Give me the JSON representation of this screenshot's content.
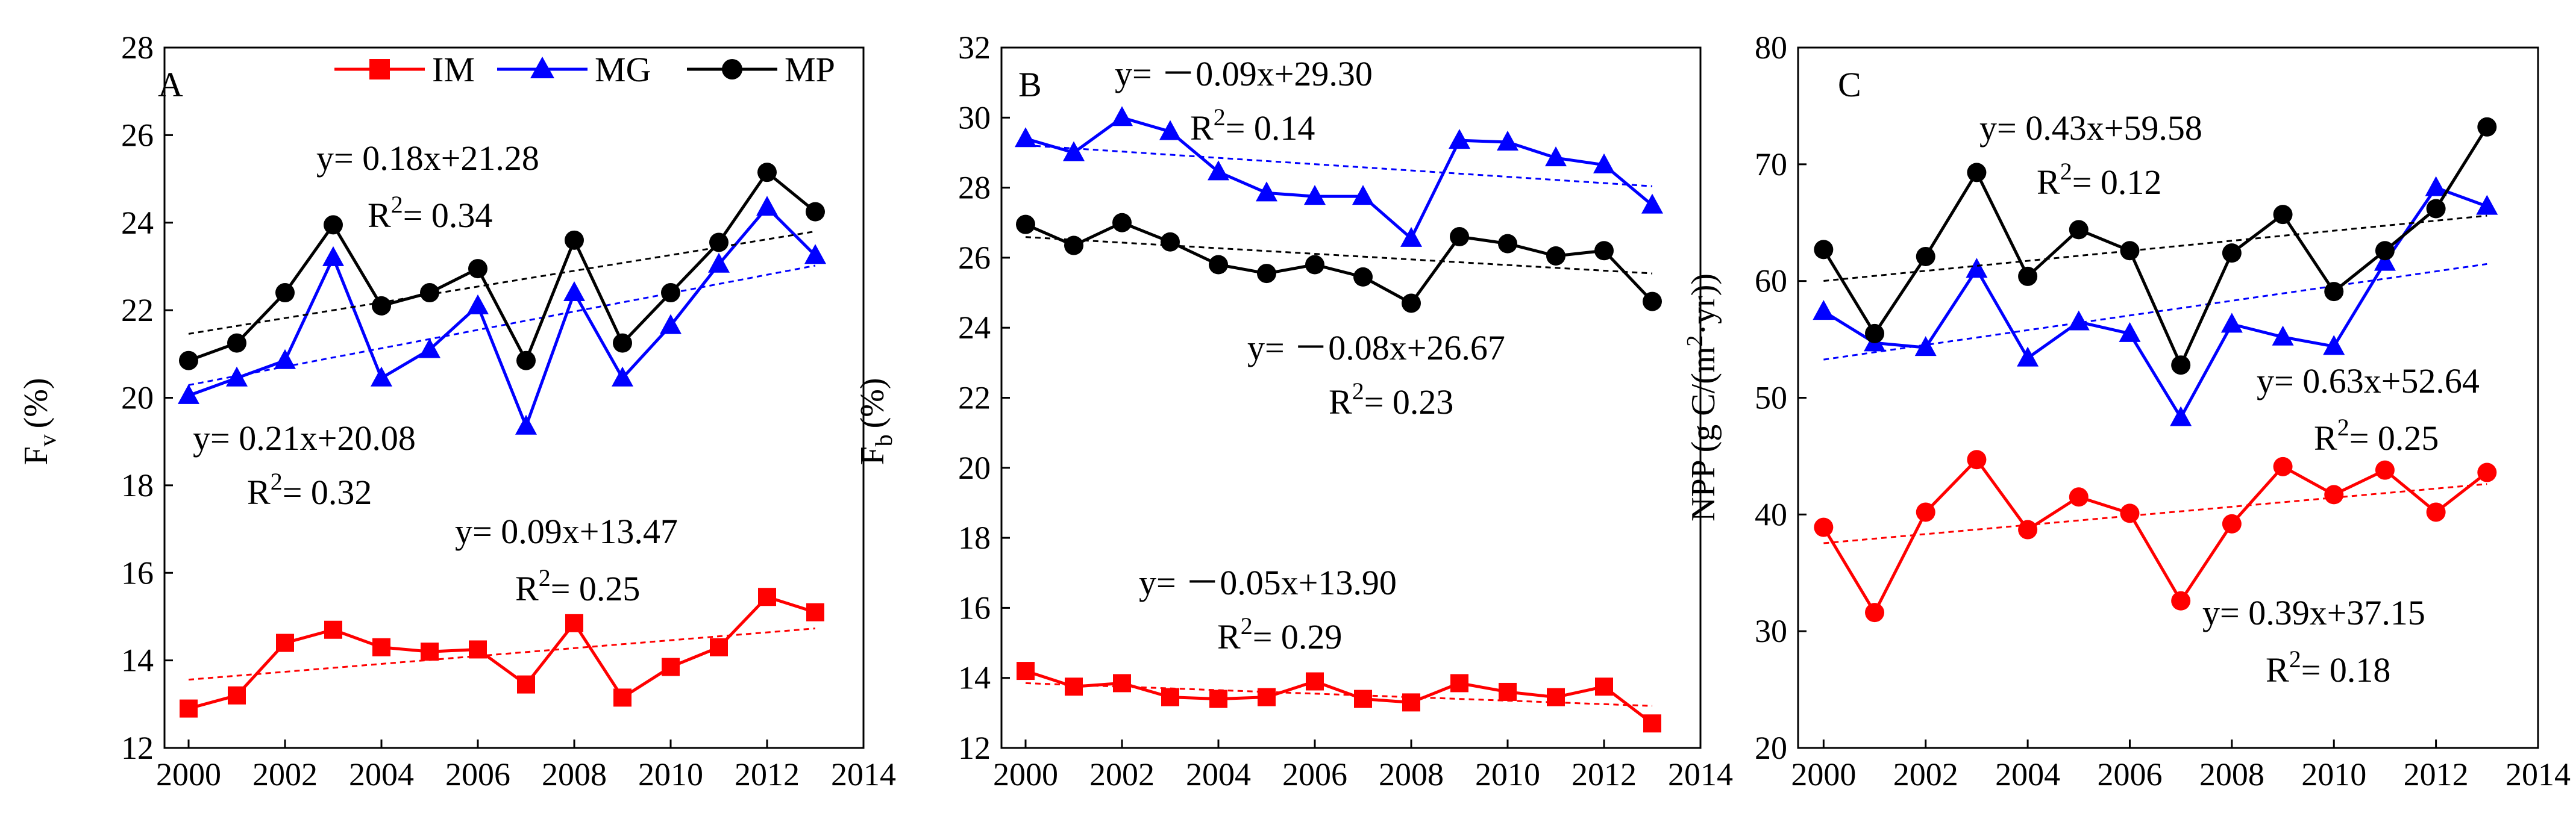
{
  "figure": {
    "legend": {
      "entries": [
        {
          "label": "IM",
          "color": "#ff0000",
          "marker": "square"
        },
        {
          "label": "MG",
          "color": "#0000ff",
          "marker": "triangle"
        },
        {
          "label": "MP",
          "color": "#000000",
          "marker": "circle"
        }
      ]
    }
  },
  "chart_data": [
    {
      "panel": "A",
      "type": "line",
      "ylabel_main": "F",
      "ylabel_sub": "v",
      "ylabel_unit": "(%)",
      "xlim": [
        1999.5,
        2014
      ],
      "ylim": [
        12,
        28
      ],
      "xticks": [
        2000,
        2002,
        2004,
        2006,
        2008,
        2010,
        2012,
        2014
      ],
      "yticks": [
        12,
        14,
        16,
        18,
        20,
        22,
        24,
        26,
        28
      ],
      "x": [
        2000,
        2001,
        2002,
        2003,
        2004,
        2005,
        2006,
        2007,
        2008,
        2009,
        2010,
        2011,
        2012,
        2013
      ],
      "series": [
        {
          "name": "IM",
          "color": "#ff0000",
          "marker": "square",
          "values": [
            12.9,
            13.2,
            14.4,
            14.7,
            14.3,
            14.2,
            14.25,
            13.45,
            14.85,
            13.15,
            13.85,
            14.3,
            15.45,
            15.1
          ],
          "trend": {
            "slope": 0.09,
            "intercept": 13.47
          }
        },
        {
          "name": "MG",
          "color": "#0000ff",
          "marker": "triangle",
          "values": [
            20.05,
            20.45,
            20.85,
            23.2,
            20.45,
            21.1,
            22.1,
            19.35,
            22.4,
            20.45,
            21.65,
            23.05,
            24.35,
            23.25
          ],
          "trend": {
            "slope": 0.21,
            "intercept": 20.08
          }
        },
        {
          "name": "MP",
          "color": "#000000",
          "marker": "circle",
          "values": [
            20.85,
            21.25,
            22.4,
            23.95,
            22.1,
            22.4,
            22.95,
            20.85,
            23.6,
            21.25,
            22.4,
            23.55,
            25.15,
            24.25
          ],
          "trend": {
            "slope": 0.18,
            "intercept": 21.28
          }
        }
      ],
      "annotations": [
        {
          "eq": "y= 0.18x+21.28",
          "r2": "0.34"
        },
        {
          "eq": "y= 0.21x+20.08",
          "r2": "0.32"
        },
        {
          "eq": "y= 0.09x+13.47",
          "r2": "0.25"
        }
      ]
    },
    {
      "panel": "B",
      "type": "line",
      "ylabel_main": "F",
      "ylabel_sub": "b",
      "ylabel_unit": "(%)",
      "xlim": [
        1999.5,
        2014
      ],
      "ylim": [
        12,
        32
      ],
      "xticks": [
        2000,
        2002,
        2004,
        2006,
        2008,
        2010,
        2012,
        2014
      ],
      "yticks": [
        12,
        14,
        16,
        18,
        20,
        22,
        24,
        26,
        28,
        30,
        32
      ],
      "x": [
        2000,
        2001,
        2002,
        2003,
        2004,
        2005,
        2006,
        2007,
        2008,
        2009,
        2010,
        2011,
        2012,
        2013
      ],
      "series": [
        {
          "name": "IM",
          "color": "#ff0000",
          "marker": "square",
          "values": [
            14.2,
            13.75,
            13.85,
            13.45,
            13.4,
            13.45,
            13.9,
            13.4,
            13.3,
            13.85,
            13.6,
            13.45,
            13.75,
            12.7
          ],
          "trend": {
            "slope": -0.05,
            "intercept": 13.9
          }
        },
        {
          "name": "MG",
          "color": "#0000ff",
          "marker": "triangle",
          "values": [
            29.4,
            29.0,
            30.0,
            29.6,
            28.45,
            27.85,
            27.75,
            27.75,
            26.55,
            29.35,
            29.3,
            28.85,
            28.65,
            27.5
          ],
          "trend": {
            "slope": -0.09,
            "intercept": 29.3
          }
        },
        {
          "name": "MP",
          "color": "#000000",
          "marker": "circle",
          "values": [
            26.95,
            26.35,
            27.0,
            26.45,
            25.8,
            25.55,
            25.8,
            25.45,
            24.7,
            26.6,
            26.4,
            26.05,
            26.2,
            24.75
          ],
          "trend": {
            "slope": -0.08,
            "intercept": 26.67
          }
        }
      ],
      "annotations": [
        {
          "eq": "y= －0.09x+29.30",
          "r2": "0.14"
        },
        {
          "eq": "y= －0.08x+26.67",
          "r2": "0.23"
        },
        {
          "eq": "y= －0.05x+13.90",
          "r2": "0.29"
        }
      ]
    },
    {
      "panel": "C",
      "type": "line",
      "ylabel_main": "NPP (g C/(m",
      "ylabel_sup": "2",
      "ylabel_rest": "·yr))",
      "xlim": [
        1999.5,
        2014
      ],
      "ylim": [
        20,
        80
      ],
      "xticks": [
        2000,
        2002,
        2004,
        2006,
        2008,
        2010,
        2012,
        2014
      ],
      "yticks": [
        20,
        30,
        40,
        50,
        60,
        70,
        80
      ],
      "x": [
        2000,
        2001,
        2002,
        2003,
        2004,
        2005,
        2006,
        2007,
        2008,
        2009,
        2010,
        2011,
        2012,
        2013
      ],
      "series": [
        {
          "name": "IM",
          "color": "#ff0000",
          "marker": "circle",
          "values": [
            38.9,
            31.6,
            40.2,
            44.7,
            38.7,
            41.5,
            40.1,
            32.6,
            39.2,
            44.1,
            41.7,
            43.8,
            40.2,
            43.6
          ],
          "trend": {
            "slope": 0.39,
            "intercept": 37.15
          }
        },
        {
          "name": "MG",
          "color": "#0000ff",
          "marker": "triangle",
          "values": [
            57.4,
            54.7,
            54.3,
            61.0,
            53.4,
            56.5,
            55.5,
            48.3,
            56.3,
            55.2,
            54.4,
            61.6,
            68.0,
            66.4
          ],
          "trend": {
            "slope": 0.63,
            "intercept": 52.64
          }
        },
        {
          "name": "MP",
          "color": "#000000",
          "marker": "circle",
          "values": [
            62.7,
            55.5,
            62.1,
            69.3,
            60.4,
            64.4,
            62.6,
            52.8,
            62.4,
            65.7,
            59.1,
            62.6,
            66.2,
            73.2
          ],
          "trend": {
            "slope": 0.43,
            "intercept": 59.58
          }
        }
      ],
      "annotations": [
        {
          "eq": "y= 0.43x+59.58",
          "r2": "0.12"
        },
        {
          "eq": "y= 0.63x+52.64",
          "r2": "0.25"
        },
        {
          "eq": "y= 0.39x+37.15",
          "r2": "0.18"
        }
      ]
    }
  ]
}
